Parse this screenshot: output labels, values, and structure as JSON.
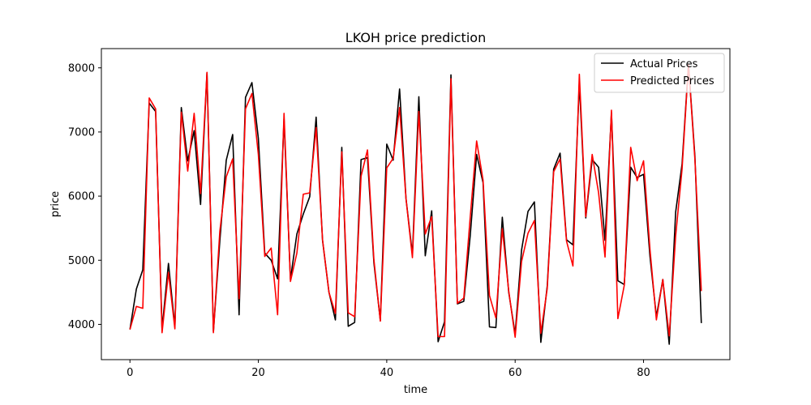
{
  "chart_data": {
    "type": "line",
    "title": "LKOH price prediction",
    "xlabel": "time",
    "ylabel": "price",
    "xlim": [
      -4.45,
      93.45
    ],
    "ylim": [
      3450,
      8300
    ],
    "xticks": [
      0,
      20,
      40,
      60,
      80
    ],
    "yticks": [
      4000,
      5000,
      6000,
      7000,
      8000
    ],
    "legend_position": "top-right",
    "x": [
      0,
      1,
      2,
      3,
      4,
      5,
      6,
      7,
      8,
      9,
      10,
      11,
      12,
      13,
      14,
      15,
      16,
      17,
      18,
      19,
      20,
      21,
      22,
      23,
      24,
      25,
      26,
      27,
      28,
      29,
      30,
      31,
      32,
      33,
      34,
      35,
      36,
      37,
      38,
      39,
      40,
      41,
      42,
      43,
      44,
      45,
      46,
      47,
      48,
      49,
      50,
      51,
      52,
      53,
      54,
      55,
      56,
      57,
      58,
      59,
      60,
      61,
      62,
      63,
      64,
      65,
      66,
      67,
      68,
      69,
      70,
      71,
      72,
      73,
      74,
      75,
      76,
      77,
      78,
      79,
      80,
      81,
      82,
      83,
      84,
      85,
      86,
      87,
      88,
      89
    ],
    "series": [
      {
        "name": "Actual Prices",
        "color": "#000000",
        "values": [
          3920,
          4550,
          4850,
          7450,
          7320,
          3930,
          4950,
          3960,
          7380,
          6550,
          7020,
          5870,
          7920,
          3890,
          5300,
          6560,
          6960,
          4150,
          7540,
          7770,
          6900,
          5110,
          5000,
          4710,
          7200,
          4700,
          5410,
          5720,
          5990,
          7230,
          5310,
          4500,
          4070,
          6760,
          3970,
          4030,
          6570,
          6600,
          4960,
          4060,
          6810,
          6560,
          7670,
          5960,
          5090,
          7550,
          5070,
          5770,
          3730,
          4040,
          7890,
          4320,
          4360,
          5380,
          6650,
          6210,
          3960,
          3950,
          5670,
          4500,
          3850,
          5160,
          5760,
          5910,
          3720,
          4600,
          6420,
          6670,
          5320,
          5240,
          7770,
          5660,
          6570,
          6450,
          5310,
          7300,
          4680,
          4620,
          6450,
          6290,
          6340,
          5060,
          4120,
          4700,
          3690,
          5750,
          6500,
          8060,
          6620,
          4020
        ]
      },
      {
        "name": "Predicted Prices",
        "color": "#ff0000",
        "values": [
          3920,
          4280,
          4250,
          7530,
          7360,
          3870,
          4810,
          3930,
          7310,
          6390,
          7290,
          6040,
          7930,
          3870,
          5450,
          6300,
          6580,
          4400,
          7360,
          7600,
          6650,
          5060,
          5190,
          4150,
          7290,
          4670,
          5110,
          6030,
          6050,
          7070,
          5320,
          4500,
          4170,
          6690,
          4180,
          4120,
          6310,
          6720,
          5010,
          4050,
          6440,
          6590,
          7380,
          5960,
          5040,
          7320,
          5410,
          5680,
          3810,
          3810,
          7830,
          4330,
          4410,
          5670,
          6860,
          6250,
          4450,
          4100,
          5490,
          4520,
          3800,
          4980,
          5420,
          5620,
          3860,
          4560,
          6380,
          6580,
          5300,
          4910,
          7900,
          5680,
          6650,
          6050,
          5050,
          7340,
          4090,
          4610,
          6760,
          6240,
          6550,
          5170,
          4070,
          4700,
          3820,
          5380,
          6420,
          8050,
          6570,
          4520
        ]
      }
    ]
  }
}
